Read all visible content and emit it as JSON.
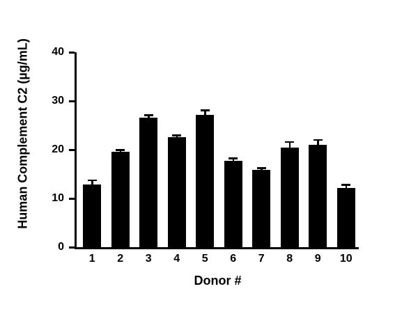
{
  "chart_data": {
    "type": "bar",
    "title": "",
    "xlabel": "Donor #",
    "ylabel": "Human Complement C2 (µg/mL)",
    "categories": [
      "1",
      "2",
      "3",
      "4",
      "5",
      "6",
      "7",
      "8",
      "9",
      "10"
    ],
    "values": [
      12.9,
      19.6,
      26.6,
      22.6,
      27.2,
      17.7,
      15.9,
      20.4,
      21.0,
      12.1
    ],
    "errors": [
      0.8,
      0.3,
      0.5,
      0.3,
      0.9,
      0.5,
      0.3,
      1.2,
      1.0,
      0.7
    ],
    "ylim": [
      0,
      40
    ],
    "yticks": [
      0,
      10,
      20,
      30,
      40
    ],
    "bar_color": "#000000",
    "axis_color": "#000000",
    "grid": false,
    "legend": null,
    "error_bars": "upper, with caps"
  }
}
